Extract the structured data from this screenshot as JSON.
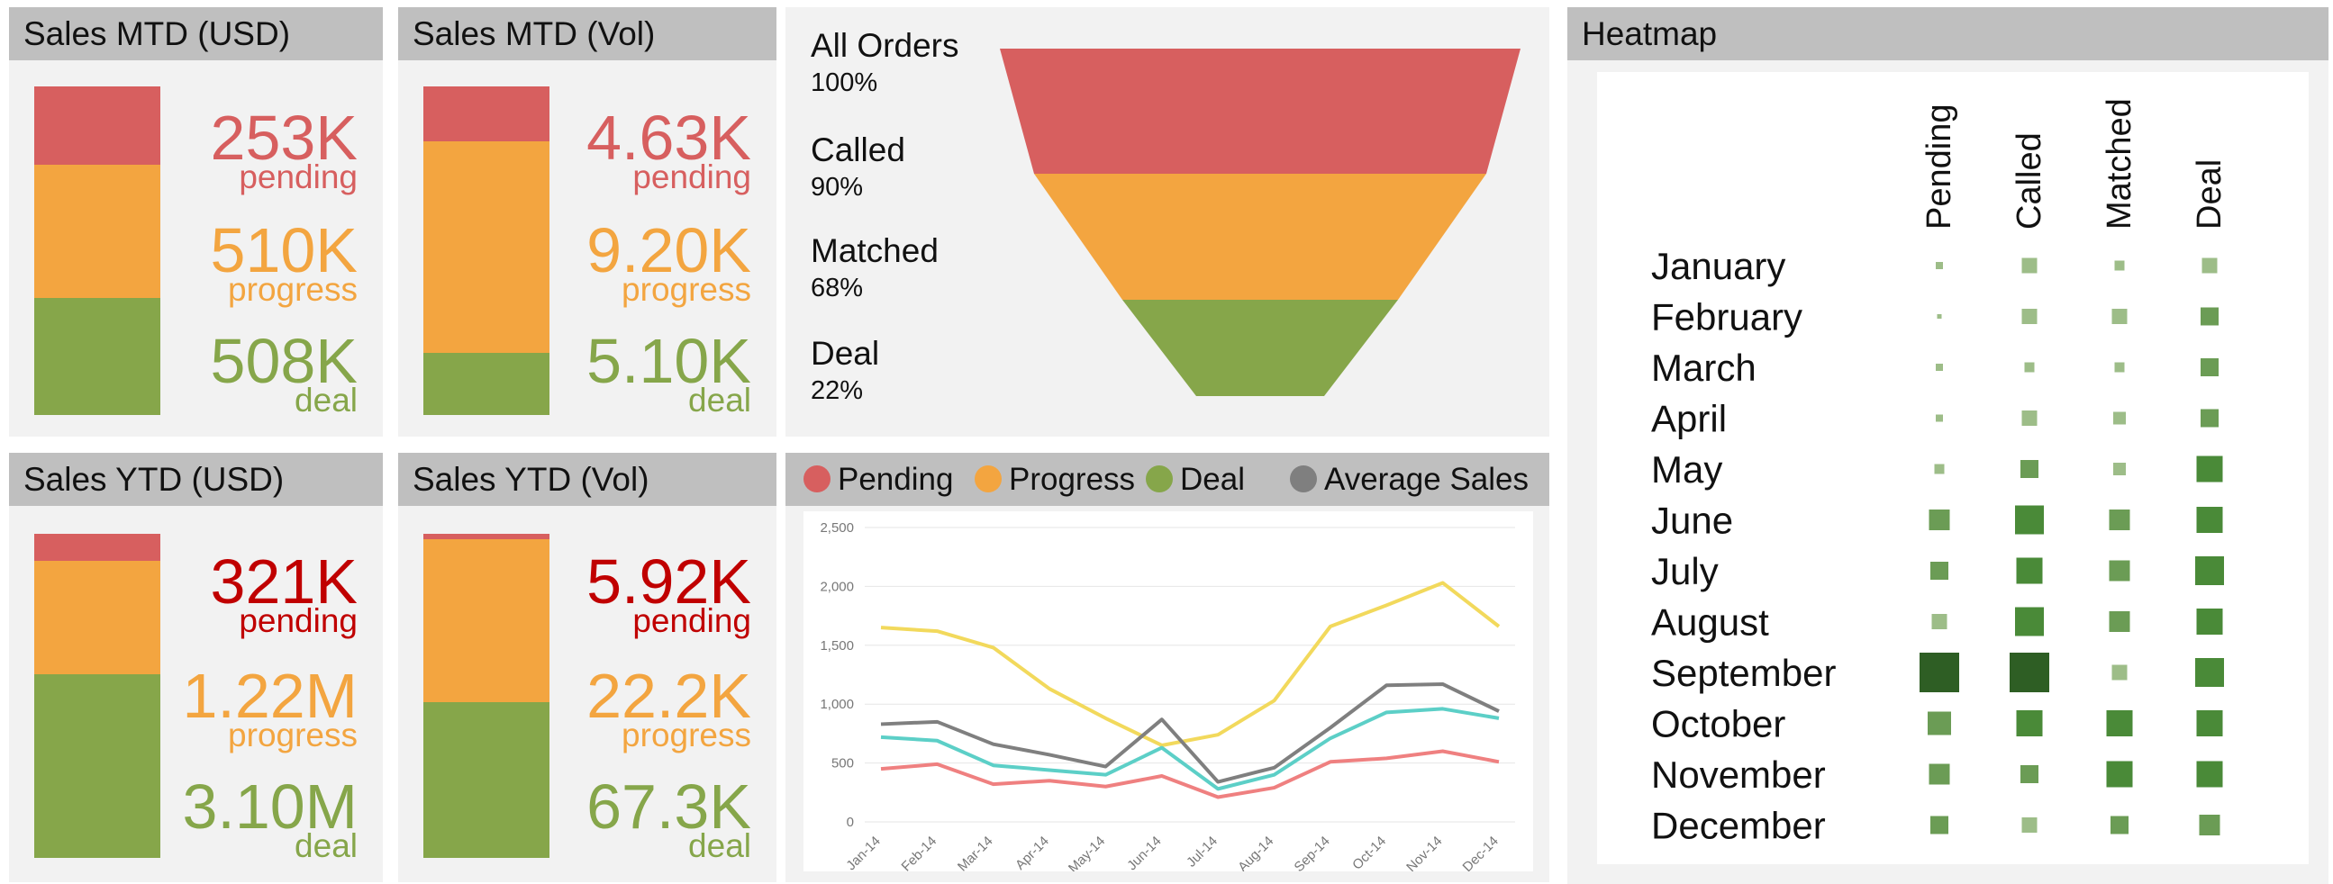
{
  "colors": {
    "pending": "#d75f5f",
    "progress": "#f3a540",
    "deal": "#86a64a",
    "pending_dark": "#c00000",
    "avg": "#7f7f7f",
    "grid": "#e6e6e6"
  },
  "mtd_usd": {
    "title": "Sales MTD (USD)",
    "pending": {
      "value": "253K",
      "label": "pending",
      "n": 253
    },
    "progress": {
      "value": "510K",
      "label": "progress",
      "n": 510
    },
    "deal": {
      "value": "508K",
      "label": "deal",
      "n": 508
    }
  },
  "mtd_vol": {
    "title": "Sales MTD (Vol)",
    "pending": {
      "value": "4.63K",
      "label": "pending",
      "n": 4.63
    },
    "progress": {
      "value": "9.20K",
      "label": "progress",
      "n": 9.2
    },
    "deal": {
      "value": "5.10K",
      "label": "deal",
      "n": 5.1
    }
  },
  "ytd_usd": {
    "title": "Sales YTD (USD)",
    "pending": {
      "value": "321K",
      "label": "pending",
      "n": 321
    },
    "progress": {
      "value": "1.22M",
      "label": "progress",
      "n": 1220
    },
    "deal": {
      "value": "3.10M",
      "label": "deal",
      "n": 3100
    }
  },
  "ytd_vol": {
    "title": "Sales YTD (Vol)",
    "pending": {
      "value": "5.92K",
      "label": "pending",
      "n": 5.92
    },
    "progress": {
      "value": "22.2K",
      "label": "progress",
      "n": 22.2
    },
    "deal": {
      "value": "67.3K",
      "label": "deal",
      "n": 67.3
    }
  },
  "funnel": {
    "stages": [
      {
        "name": "All Orders",
        "pct": "100%",
        "value": 100
      },
      {
        "name": "Called",
        "pct": "90%",
        "value": 90
      },
      {
        "name": "Matched",
        "pct": "68%",
        "value": 68
      },
      {
        "name": "Deal",
        "pct": "22%",
        "value": 22
      }
    ]
  },
  "legend": {
    "pending": "Pending",
    "progress": "Progress",
    "deal": "Deal",
    "avg": "Average Sales"
  },
  "heatmap_title": "Heatmap",
  "chart_data": [
    {
      "type": "line",
      "x": [
        "Jan-14",
        "Feb-14",
        "Mar-14",
        "Apr-14",
        "May-14",
        "Jun-14",
        "Jul-14",
        "Aug-14",
        "Sep-14",
        "Oct-14",
        "Nov-14",
        "Dec-14"
      ],
      "ylim": [
        0,
        2500
      ],
      "yticks": [
        "0",
        "500",
        "1,000",
        "1,500",
        "2,000",
        "2,500"
      ],
      "grid": true,
      "series": [
        {
          "color": "#f2d95c",
          "values": [
            1650,
            1620,
            1480,
            1130,
            880,
            650,
            740,
            1030,
            1660,
            1840,
            2030,
            1660
          ]
        },
        {
          "color": "#7f7f7f",
          "values": [
            830,
            850,
            660,
            570,
            470,
            870,
            340,
            460,
            800,
            1160,
            1170,
            940
          ]
        },
        {
          "color": "#5ccfc7",
          "values": [
            720,
            690,
            480,
            440,
            400,
            630,
            280,
            400,
            710,
            930,
            960,
            880
          ]
        },
        {
          "color": "#ef8080",
          "values": [
            450,
            490,
            320,
            350,
            300,
            390,
            210,
            290,
            510,
            540,
            600,
            510
          ]
        }
      ]
    },
    {
      "type": "heatmap",
      "title": "Heatmap",
      "rows": [
        "January",
        "February",
        "March",
        "April",
        "May",
        "June",
        "July",
        "August",
        "September",
        "October",
        "November",
        "December"
      ],
      "columns": [
        "Pending",
        "Called",
        "Matched",
        "Deal"
      ],
      "values": [
        [
          2,
          5,
          3,
          5
        ],
        [
          1,
          5,
          5,
          6
        ],
        [
          2,
          3,
          3,
          6
        ],
        [
          2,
          5,
          4,
          6
        ],
        [
          3,
          6,
          4,
          9
        ],
        [
          7,
          10,
          7,
          9
        ],
        [
          6,
          9,
          7,
          10
        ],
        [
          5,
          10,
          7,
          9
        ],
        [
          14,
          14,
          5,
          10
        ],
        [
          8,
          9,
          9,
          9
        ],
        [
          7,
          6,
          9,
          9
        ],
        [
          6,
          5,
          6,
          7
        ]
      ]
    }
  ]
}
